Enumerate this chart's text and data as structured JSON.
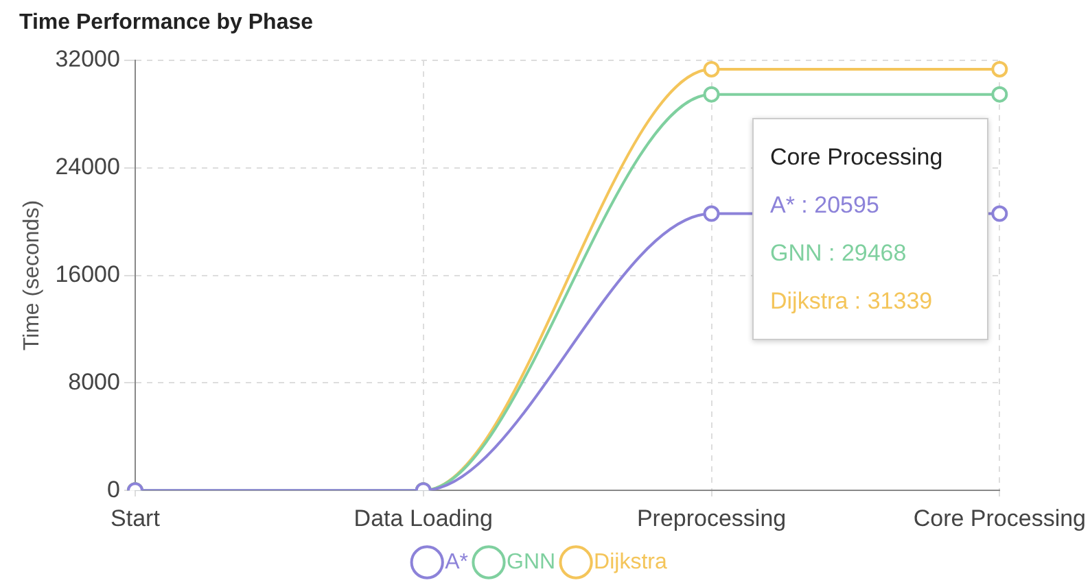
{
  "chart_data": {
    "type": "line",
    "title": "Time Performance by Phase",
    "ylabel": "Time (seconds)",
    "categories": [
      "Start",
      "Data Loading",
      "Preprocessing",
      "Core Processing"
    ],
    "series": [
      {
        "name": "A*",
        "color": "#8c82d9",
        "values": [
          0,
          0,
          20595,
          20595
        ]
      },
      {
        "name": "GNN",
        "color": "#7fd09f",
        "values": [
          0,
          0,
          29468,
          29468
        ]
      },
      {
        "name": "Dijkstra",
        "color": "#f4c55a",
        "values": [
          0,
          0,
          31339,
          31339
        ]
      }
    ],
    "ylim": [
      0,
      32000
    ],
    "yticks": [
      0,
      8000,
      16000,
      24000,
      32000
    ],
    "grid": true,
    "legend": "bottom",
    "marker": "circle",
    "line_style": "solid",
    "annotations": [
      "Core Processing",
      "A* : 20595",
      "GNN : 29468",
      "Dijkstra : 31339"
    ]
  }
}
